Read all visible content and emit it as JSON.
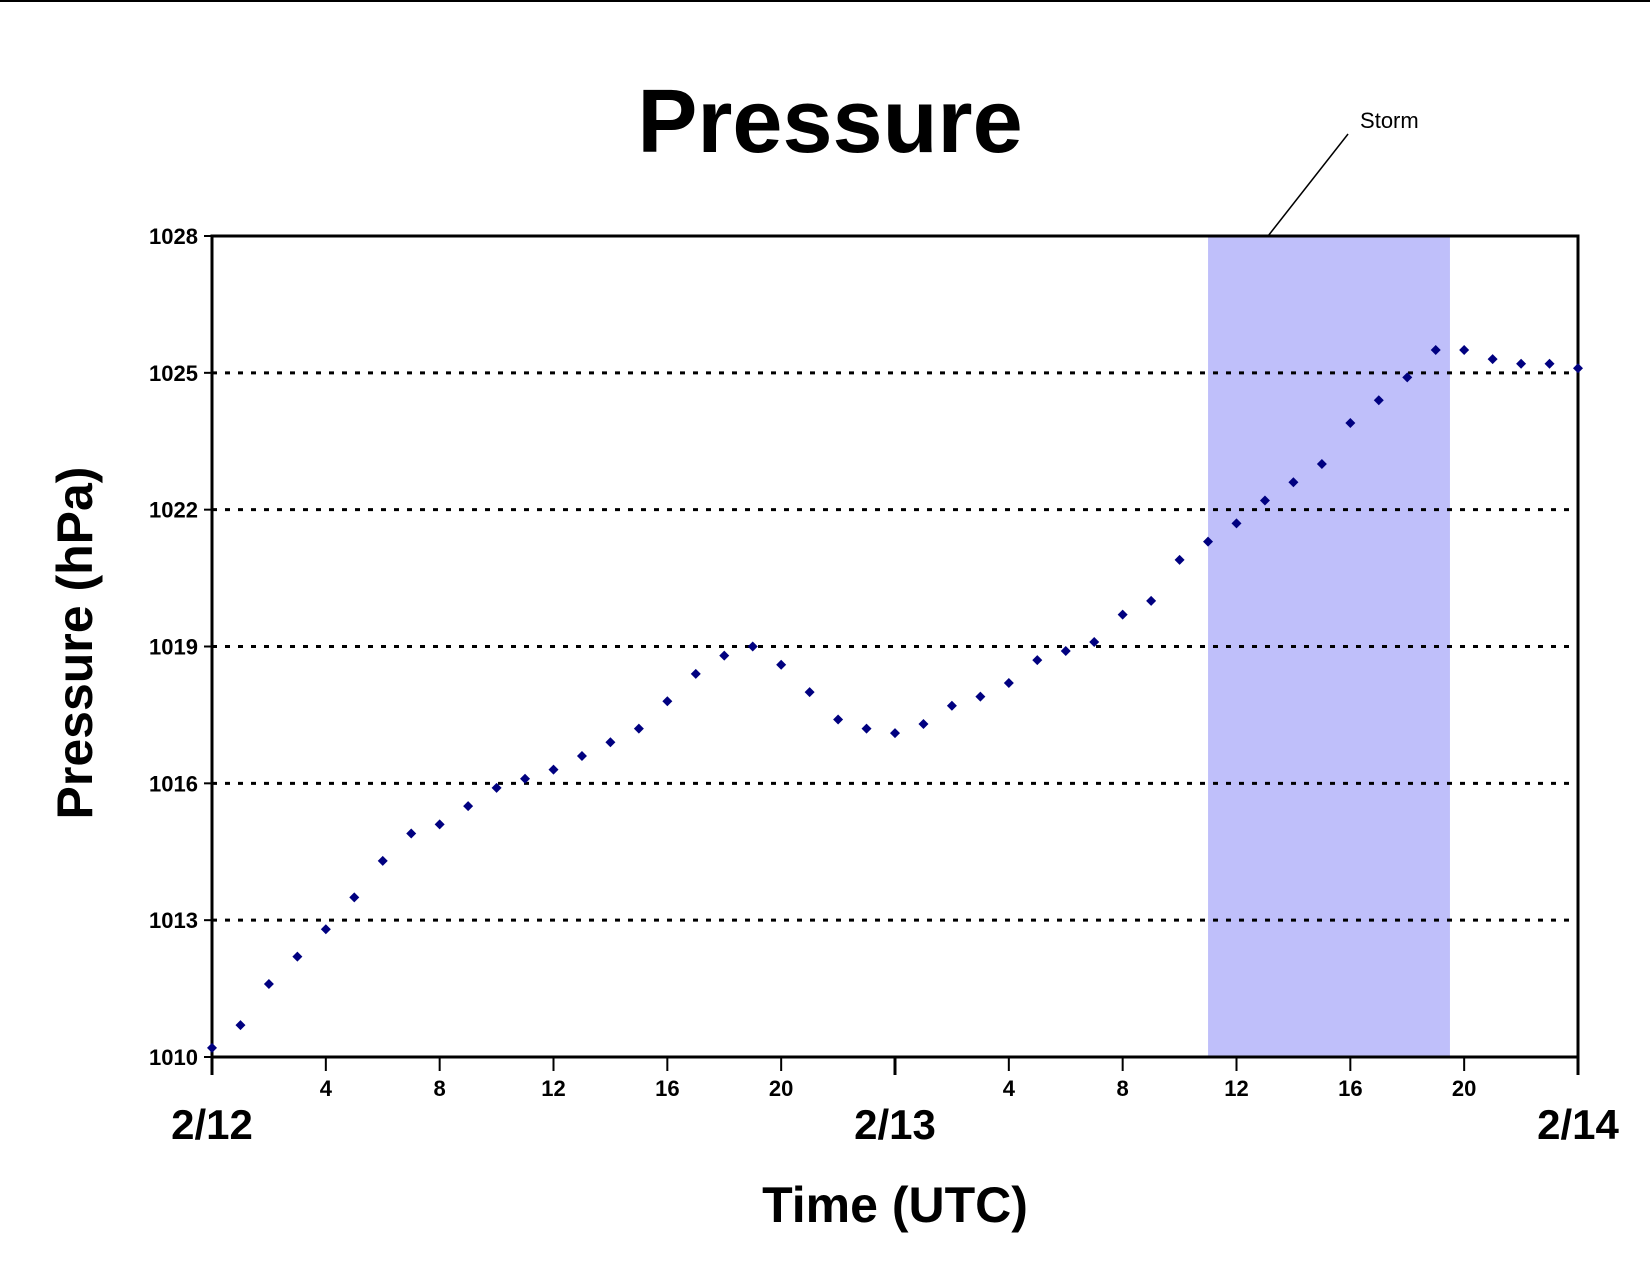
{
  "chart_data": {
    "type": "scatter",
    "title": "Pressure",
    "xlabel": "Time (UTC)",
    "ylabel": "Pressure (hPa)",
    "ylim": [
      1010,
      1028
    ],
    "yticks": [
      "1010",
      "1013",
      "1016",
      "1019",
      "1022",
      "1025",
      "1028"
    ],
    "xlim": [
      0,
      48
    ],
    "x_hour_ticks": [
      {
        "x": 4,
        "label": "4"
      },
      {
        "x": 8,
        "label": "8"
      },
      {
        "x": 12,
        "label": "12"
      },
      {
        "x": 16,
        "label": "16"
      },
      {
        "x": 20,
        "label": "20"
      },
      {
        "x": 28,
        "label": "4"
      },
      {
        "x": 32,
        "label": "8"
      },
      {
        "x": 36,
        "label": "12"
      },
      {
        "x": 40,
        "label": "16"
      },
      {
        "x": 44,
        "label": "20"
      }
    ],
    "x_date_labels": [
      {
        "x": 0,
        "label": "2/12"
      },
      {
        "x": 24,
        "label": "2/13"
      },
      {
        "x": 48,
        "label": "2/14"
      }
    ],
    "grid": "horizontal dotted",
    "marker_color": "#000080",
    "shade_color": "#bfbffa",
    "x": [
      0,
      1,
      2,
      3,
      4,
      5,
      6,
      7,
      8,
      9,
      10,
      11,
      12,
      13,
      14,
      15,
      16,
      17,
      18,
      19,
      20,
      21,
      22,
      23,
      24,
      25,
      26,
      27,
      28,
      29,
      30,
      31,
      32,
      33,
      34,
      35,
      36,
      37,
      38,
      39,
      40,
      41,
      42,
      43,
      44,
      45,
      46,
      47,
      48
    ],
    "values": [
      1010.2,
      1010.7,
      1011.6,
      1012.2,
      1012.8,
      1013.5,
      1014.3,
      1014.9,
      1015.1,
      1015.5,
      1015.9,
      1016.1,
      1016.3,
      1016.6,
      1016.9,
      1017.2,
      1017.8,
      1018.4,
      1018.8,
      1019.0,
      1018.6,
      1018.0,
      1017.4,
      1017.2,
      1017.1,
      1017.3,
      1017.7,
      1017.9,
      1018.2,
      1018.7,
      1018.9,
      1019.1,
      1019.7,
      1020.0,
      1020.9,
      1021.3,
      1021.7,
      1022.2,
      1022.6,
      1023.0,
      1023.9,
      1024.4,
      1024.9,
      1025.5,
      1025.5,
      1025.3,
      1025.2,
      1025.2,
      1025.1
    ],
    "annotations": [
      {
        "text": "Storm",
        "x_start": 35,
        "x_end": 43.5
      }
    ]
  }
}
